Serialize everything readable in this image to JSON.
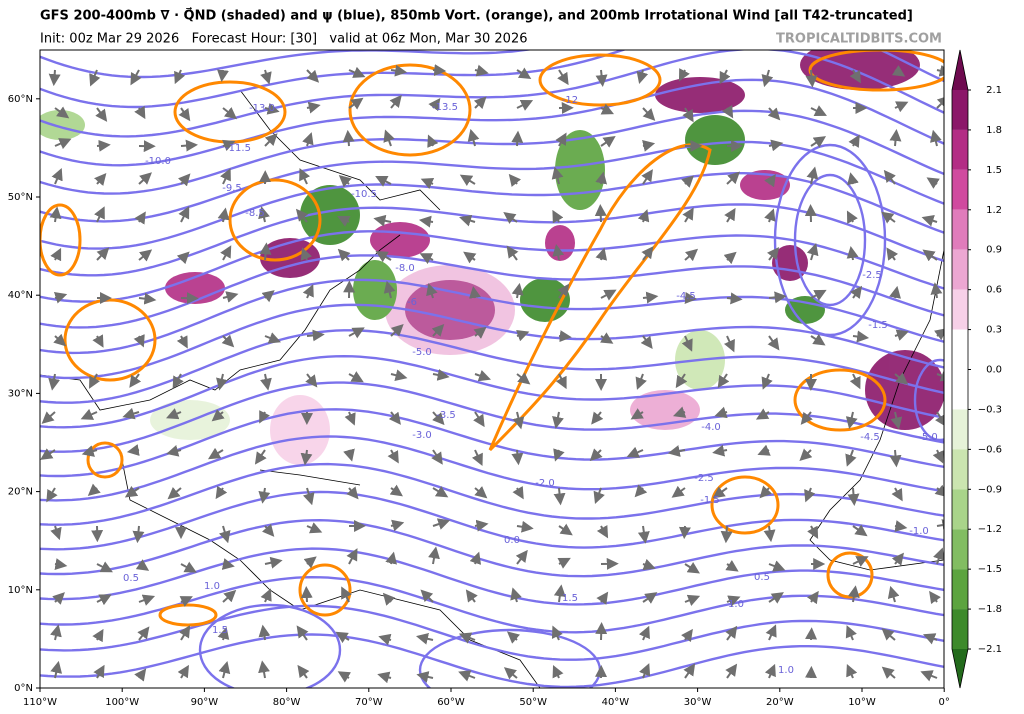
{
  "header": {
    "title": "GFS 200-400mb ∇ · Q⃗ND (shaded) and ψ (blue), 850mb Vort. (orange), and 200mb Irrotational Wind [all T42-truncated]",
    "init": "Init: 00z Mar 29 2026   Forecast Hour: [30]   valid at 06z Mon, Mar 30 2026",
    "source": "TROPICALTIDBITS.COM"
  },
  "map": {
    "lat_labels": [
      "0°N",
      "10°N",
      "20°N",
      "30°N",
      "40°N",
      "50°N",
      "60°N"
    ],
    "lon_labels": [
      "110°W",
      "100°W",
      "90°W",
      "80°W",
      "70°W",
      "60°W",
      "50°W",
      "40°W",
      "30°W",
      "20°W",
      "10°W",
      "0°"
    ],
    "contour_labels": [
      "-13.0",
      "-13.5",
      "-12",
      "-11.5",
      "-10.5",
      "-10.0",
      "-9.5",
      "-8.5",
      "-8.0",
      "-6",
      "-5.0",
      "-4.5",
      "-4.0",
      "-3.5",
      "-3.0",
      "-2.5",
      "-2.0",
      "-1.5",
      "0.0",
      "0.5",
      "0.5",
      "1.0",
      "1.0",
      "1.5",
      "1.5",
      "-1.0",
      "1.0",
      "-5.0",
      "-4.5",
      "-2.5",
      "-1.5"
    ]
  },
  "colorbar": {
    "labels": [
      "2.1",
      "1.8",
      "1.5",
      "1.2",
      "0.9",
      "0.6",
      "0.3",
      "0.0",
      "−0.3",
      "−0.6",
      "−0.9",
      "−1.2",
      "−1.5",
      "−1.8",
      "−2.1"
    ]
  }
}
